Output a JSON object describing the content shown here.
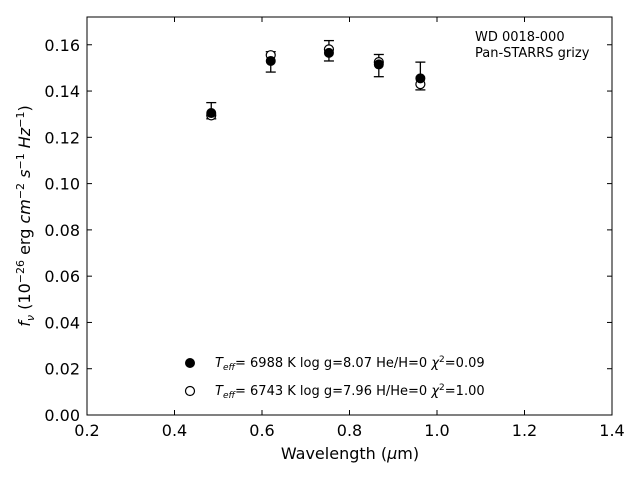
{
  "chart_data": {
    "type": "scatter",
    "xlabel": "Wavelength (μm)",
    "ylabel": "f_ν (10^-26 erg cm^-2 s^-1 Hz^-1)",
    "xlim": [
      0.2,
      1.4
    ],
    "ylim": [
      0.0,
      0.172
    ],
    "xticks": [
      0.2,
      0.4,
      0.6,
      0.8,
      1.0,
      1.2,
      1.4
    ],
    "xtick_labels": [
      "0.2",
      "0.4",
      "0.6",
      "0.8",
      "1.0",
      "1.2",
      "1.4"
    ],
    "yticks": [
      0.0,
      0.02,
      0.04,
      0.06,
      0.08,
      0.1,
      0.12,
      0.14,
      0.16
    ],
    "ytick_labels": [
      "0.00",
      "0.02",
      "0.04",
      "0.06",
      "0.08",
      "0.10",
      "0.12",
      "0.14",
      "0.16"
    ],
    "grid": false,
    "annotation": {
      "object": "WD 0018-000",
      "survey": "Pan-STARRS grizy"
    },
    "observed": {
      "x": [
        0.484,
        0.62,
        0.753,
        0.867,
        0.962
      ],
      "y": [
        0.1315,
        0.1525,
        0.1572,
        0.151,
        0.1465
      ],
      "yerr_low": [
        0.128,
        0.1482,
        0.153,
        0.1462,
        0.1405
      ],
      "yerr_high": [
        0.135,
        0.157,
        0.1618,
        0.1558,
        0.1525
      ]
    },
    "series": [
      {
        "marker": "filled-circle",
        "model_label": "T_eff= 6988 K log g=8.07 He/H=0 χ²=0.09",
        "label_parts": {
          "teff": "6988 K",
          "logg": "log g=8.07",
          "comp": "He/H=0",
          "chi2": "=0.09"
        },
        "x": [
          0.484,
          0.62,
          0.753,
          0.867,
          0.962
        ],
        "y": [
          0.1305,
          0.153,
          0.1565,
          0.1515,
          0.1455
        ]
      },
      {
        "marker": "open-circle",
        "model_label": "T_eff= 6743 K log g=7.96 H/He=0 χ²=1.00",
        "label_parts": {
          "teff": "6743 K",
          "logg": "log g=7.96",
          "comp": "H/He=0",
          "chi2": "=1.00"
        },
        "x": [
          0.484,
          0.62,
          0.753,
          0.867,
          0.962
        ],
        "y": [
          0.1295,
          0.1555,
          0.158,
          0.1525,
          0.143
        ]
      }
    ],
    "legend_position": "lower-center"
  }
}
